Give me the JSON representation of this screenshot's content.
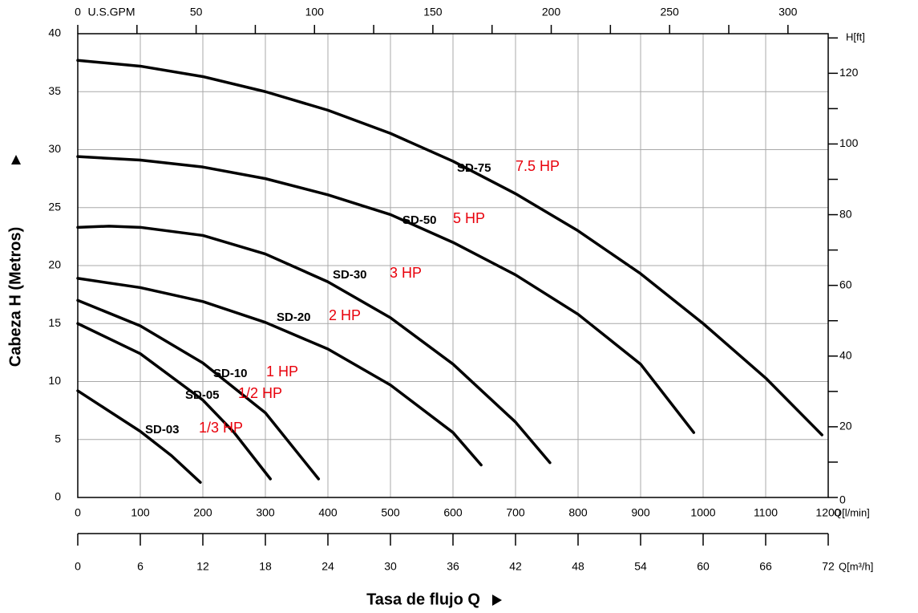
{
  "chart_data": {
    "type": "line",
    "x_label": "Tasa de flujo Q",
    "y_label": "Cabeza H (Metros)",
    "x_unit_label": "Q[l/min]",
    "xlim": [
      0,
      1200
    ],
    "xticks": [
      0,
      100,
      200,
      300,
      400,
      500,
      600,
      700,
      800,
      900,
      1000,
      1100,
      1200
    ],
    "ylim": [
      0,
      40
    ],
    "yticks": [
      0,
      5,
      10,
      15,
      20,
      25,
      30,
      35,
      40
    ],
    "grid": true,
    "x2_label": "Q[m³/h]",
    "x2lim": [
      0,
      72
    ],
    "x2ticks": [
      0,
      6,
      12,
      18,
      24,
      30,
      36,
      42,
      48,
      54,
      60,
      66,
      72
    ],
    "x3_label": "U.S.GPM",
    "x3lim": [
      0,
      317
    ],
    "x3ticks": [
      0,
      50,
      100,
      150,
      200,
      250,
      300
    ],
    "x3minorticks": [
      25,
      75,
      125,
      175,
      225,
      275
    ],
    "y2_label": "H[ft]",
    "y2lim": [
      0,
      131.2
    ],
    "y2ticks": [
      0,
      20,
      40,
      60,
      80,
      100,
      120
    ],
    "y2minorticks": [
      10,
      30,
      50,
      70,
      90,
      110,
      130
    ],
    "series": [
      {
        "name": "SD-75",
        "label": "7.5 HP",
        "color": "#000000",
        "label_color": "#e8000b",
        "x": [
          0,
          100,
          200,
          300,
          400,
          500,
          600,
          700,
          800,
          900,
          1000,
          1100,
          1190
        ],
        "values": [
          37.7,
          37.2,
          36.3,
          35.0,
          33.4,
          31.4,
          29.0,
          26.2,
          23.0,
          19.3,
          15.0,
          10.3,
          5.4
        ]
      },
      {
        "name": "SD-50",
        "label": "5 HP",
        "color": "#000000",
        "label_color": "#e8000b",
        "x": [
          0,
          100,
          200,
          300,
          400,
          500,
          600,
          700,
          800,
          900,
          985
        ],
        "values": [
          29.4,
          29.1,
          28.5,
          27.5,
          26.1,
          24.4,
          22.0,
          19.2,
          15.8,
          11.5,
          5.6
        ]
      },
      {
        "name": "SD-30",
        "label": "3 HP",
        "color": "#000000",
        "label_color": "#e8000b",
        "x": [
          0,
          50,
          100,
          200,
          300,
          400,
          500,
          600,
          700,
          755
        ],
        "values": [
          23.3,
          23.4,
          23.3,
          22.6,
          21.0,
          18.6,
          15.5,
          11.5,
          6.5,
          3.0
        ]
      },
      {
        "name": "SD-20",
        "label": "2 HP",
        "color": "#000000",
        "label_color": "#e8000b",
        "x": [
          0,
          100,
          200,
          300,
          400,
          500,
          600,
          645
        ],
        "values": [
          18.9,
          18.1,
          16.9,
          15.1,
          12.8,
          9.7,
          5.6,
          2.8
        ]
      },
      {
        "name": "SD-10",
        "label": "1 HP",
        "color": "#000000",
        "label_color": "#e8000b",
        "x": [
          0,
          100,
          200,
          300,
          385
        ],
        "values": [
          17.0,
          14.8,
          11.6,
          7.3,
          1.6
        ]
      },
      {
        "name": "SD-05",
        "label": "1/2 HP",
        "color": "#000000",
        "label_color": "#e8000b",
        "x": [
          0,
          100,
          200,
          250,
          308
        ],
        "values": [
          15.0,
          12.4,
          8.4,
          5.6,
          1.6
        ]
      },
      {
        "name": "SD-03",
        "label": "1/3 HP",
        "color": "#000000",
        "label_color": "#e8000b",
        "x": [
          0,
          100,
          150,
          196
        ],
        "values": [
          9.2,
          5.7,
          3.6,
          1.3
        ]
      }
    ]
  }
}
